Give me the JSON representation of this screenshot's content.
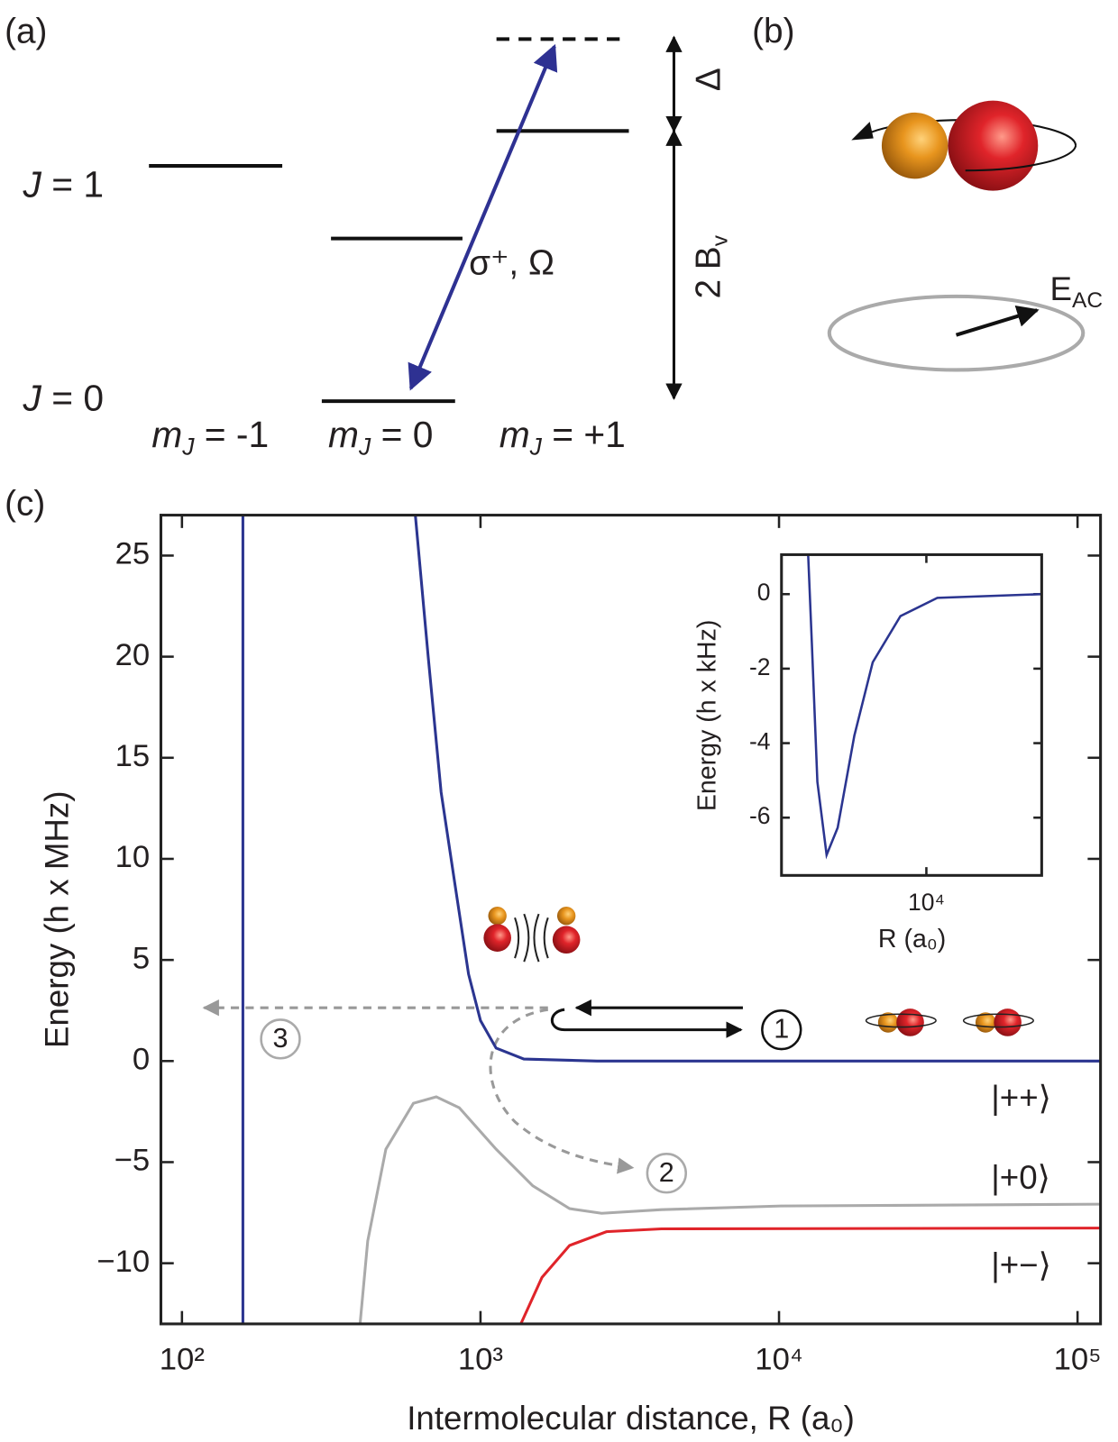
{
  "panel_labels": [
    "(a)",
    "(b)",
    "(c)"
  ],
  "level_diagram": {
    "j_labels": [
      {
        "symbol": "J",
        "rest": " = 1"
      },
      {
        "symbol": "J",
        "rest": " = 0"
      }
    ],
    "m_labels": [
      {
        "symbol": "m",
        "sub": "J",
        "rest": " = -1"
      },
      {
        "symbol": "m",
        "sub": "J",
        "rest": " = 0"
      },
      {
        "symbol": "m",
        "sub": "J",
        "rest": " = +1"
      }
    ],
    "transition": "σ⁺, Ω",
    "detuning": "Δ",
    "splitting": {
      "text": "2 B",
      "sub": "v"
    }
  },
  "field_label": {
    "symbol": "E",
    "sub": "AC"
  },
  "chart_data": [
    {
      "type": "line",
      "xlog": true,
      "x_label": "Intermolecular distance, R (a₀)",
      "y_label": "Energy (h x MHz)",
      "xlim": [
        85,
        119400
      ],
      "ylim": [
        -13,
        27
      ],
      "xticks": [
        {
          "value": 100,
          "label": "10²"
        },
        {
          "value": 1000,
          "label": "10³"
        },
        {
          "value": 10000,
          "label": "10⁴"
        },
        {
          "value": 100000,
          "label": "10⁵"
        }
      ],
      "yticks": [
        {
          "value": -10,
          "label": "−10"
        },
        {
          "value": -5,
          "label": "−5"
        },
        0,
        5,
        10,
        15,
        20,
        25
      ],
      "annotations": [
        "1",
        "2",
        "3"
      ],
      "series": [
        {
          "color": "#2b3590",
          "x": [
            160,
            160
          ],
          "values": [
            -13,
            27
          ]
        },
        {
          "name": "|++⟩",
          "color": "#2b3590",
          "x": [
            605,
            668,
            738,
            820,
            912,
            1000,
            1128,
            1397,
            2455,
            119400
          ],
          "values": [
            27,
            20,
            13.3,
            8.8,
            4.3,
            2.0,
            0.64,
            0.1,
            0,
            0
          ]
        },
        {
          "name": "|+0⟩",
          "color": "#aaaaaa",
          "x": [
            395,
            419,
            482,
            596,
            711,
            849,
            1128,
            1496,
            1988,
            2546,
            4036,
            10140,
            119400
          ],
          "values": [
            -13,
            -8.9,
            -4.36,
            -2.09,
            -1.77,
            -2.31,
            -4.36,
            -6.17,
            -7.3,
            -7.53,
            -7.35,
            -7.17,
            -7.08
          ]
        },
        {
          "name": "|+−⟩",
          "color": "#e0242a",
          "x": [
            1365,
            1607,
            1988,
            2642,
            4036,
            119400
          ],
          "values": [
            -13,
            -10.7,
            -9.12,
            -8.44,
            -8.3,
            -8.26
          ]
        }
      ]
    },
    {
      "type": "line",
      "xlog": true,
      "x_label": "R (a₀)",
      "y_label": "Energy (h x kHz)",
      "xlim": [
        900,
        68000
      ],
      "ylim": [
        -7.55,
        1.06
      ],
      "xticks": [
        {
          "value": 10000,
          "label": "10⁴"
        }
      ],
      "yticks": [
        -6,
        -4,
        -2,
        0
      ],
      "series": [
        {
          "color": "#2b3590",
          "x": [
            1402,
            1491,
            1634,
            1905,
            2290,
            3020,
            4100,
            6500,
            12000,
            68000
          ],
          "values": [
            1.06,
            -1.33,
            -5.04,
            -7.0,
            -6.27,
            -3.8,
            -1.83,
            -0.59,
            -0.1,
            0
          ]
        }
      ]
    }
  ]
}
